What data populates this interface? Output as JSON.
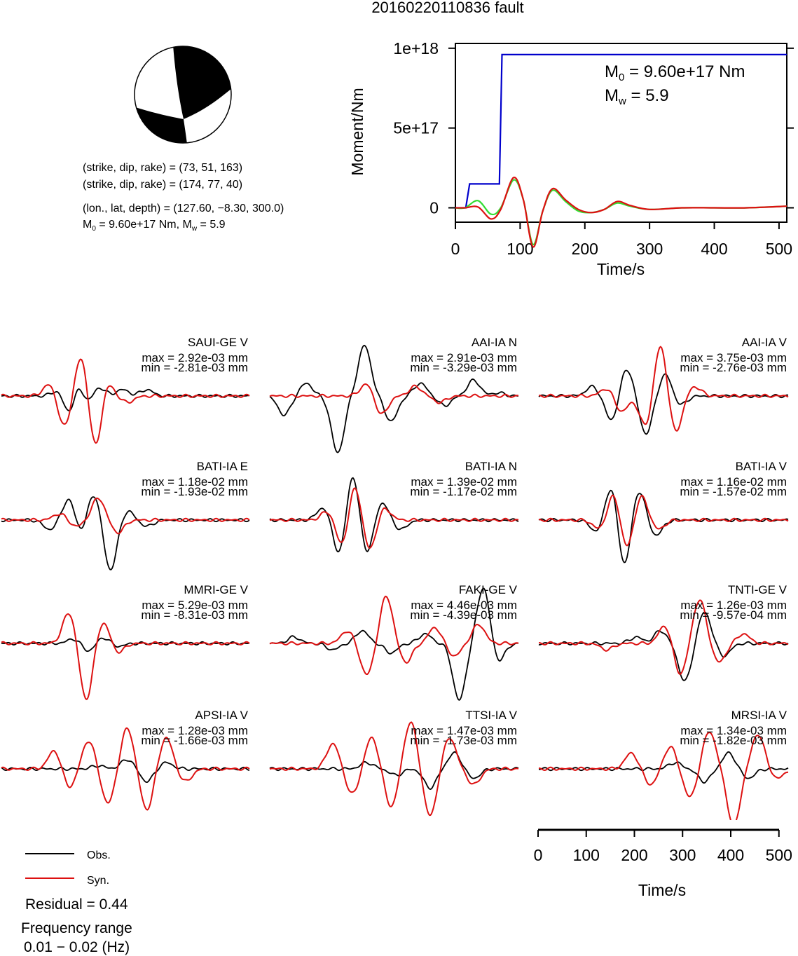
{
  "title": "20160220110836 fault",
  "focal_mechanism": {
    "nodal_plane_1": "(strike, dip, rake) = (73, 51, 163)",
    "nodal_plane_2": "(strike, dip, rake) = (174, 77, 40)",
    "location": "(lon., lat, depth) = (127.60, −8.30, 300.0)",
    "moment_prefix": "M",
    "moment_sub": "0",
    "moment_rest": " = 9.60e+17 Nm, M",
    "mw_sub": "w",
    "mw_rest": " = 5.9"
  },
  "chart_data": [
    {
      "type": "line",
      "ylabel": "Moment/Nm",
      "xlabel": "Time/s",
      "xlim": [
        0,
        512
      ],
      "ylim": [
        -9e+16,
        1.03e+18
      ],
      "xticks": [
        0,
        100,
        200,
        300,
        400,
        500
      ],
      "yticks": [
        0,
        5e+17,
        1e+18
      ],
      "ytick_labels": [
        "0",
        "5e+17",
        "1e+18"
      ],
      "annotation_m0": {
        "prefix": "M",
        "sub": "0",
        "rest": " = 9.60e+17 Nm"
      },
      "annotation_mw": {
        "prefix": "M",
        "sub": "w",
        "rest": " = 5.9"
      },
      "series": [
        {
          "color": "#0000cc",
          "kind": "moment",
          "x": [
            0,
            16,
            22,
            68,
            72,
            512
          ],
          "y": [
            0,
            0,
            1.5e+17,
            1.5e+17,
            9.6e+17,
            9.6e+17
          ]
        },
        {
          "color": "#33dd33",
          "kind": "rate",
          "x": [
            0,
            15,
            35,
            55,
            70,
            90,
            105,
            120,
            135,
            150,
            170,
            190,
            210,
            230,
            250,
            270,
            300,
            350,
            400,
            450,
            512
          ],
          "y": [
            0,
            0,
            4.5e+16,
            -4e+16,
            0,
            1.75e+17,
            5e+16,
            -2.3e+17,
            -2e+16,
            1.1e+17,
            4e+16,
            -2e+16,
            -3e+16,
            -1e+16,
            3e+16,
            1e+16,
            -1e+16,
            0,
            0,
            0,
            1e+16
          ]
        },
        {
          "color": "#dd1111",
          "kind": "rate",
          "x": [
            0,
            15,
            35,
            55,
            70,
            90,
            105,
            120,
            135,
            150,
            170,
            190,
            210,
            230,
            250,
            270,
            300,
            350,
            400,
            450,
            512
          ],
          "y": [
            0,
            0,
            5000000000000000.0,
            -7e+16,
            -1e+16,
            1.9e+17,
            5e+16,
            -2.45e+17,
            -2e+16,
            1.2e+17,
            5e+16,
            -1e+16,
            -3e+16,
            -1e+16,
            4e+16,
            1.5e+16,
            -1e+16,
            0,
            0,
            0,
            1e+16
          ]
        }
      ]
    },
    {
      "type": "line",
      "xlabel": "Time/s",
      "xlim": [
        0,
        512
      ],
      "xticks": [
        0,
        100,
        200,
        300,
        400,
        500
      ],
      "note": "waveform panels: observed (black) vs synthetic (red); amplitudes normalized per station",
      "stations": [
        {
          "label": "SAUI-GE V",
          "max": "max = 2.92e-03 mm",
          "min": "min = -2.81e-03 mm",
          "obs": {
            "peaks": [
              [
                120,
                0.25
              ],
              [
                140,
                -0.7
              ],
              [
                160,
                0.6
              ],
              [
                175,
                -0.4
              ],
              [
                200,
                0.3
              ],
              [
                250,
                0.2
              ],
              [
                300,
                0.2
              ]
            ]
          },
          "syn": {
            "peaks": [
              [
                100,
                0.4
              ],
              [
                130,
                -1.0
              ],
              [
                165,
                1.3
              ],
              [
                195,
                -1.8
              ],
              [
                215,
                0.6
              ],
              [
                260,
                -0.2
              ]
            ]
          }
        },
        {
          "label": "AAI-IA N",
          "max": "max = 2.91e-03 mm",
          "min": "min = -3.29e-03 mm",
          "obs": {
            "peaks": [
              [
                30,
                -0.6
              ],
              [
                75,
                0.4
              ],
              [
                140,
                -1.8
              ],
              [
                195,
                1.6
              ],
              [
                250,
                -0.8
              ],
              [
                310,
                0.4
              ],
              [
                360,
                -0.3
              ],
              [
                420,
                0.5
              ],
              [
                470,
                0.1
              ]
            ]
          },
          "syn": {
            "peaks": [
              [
                200,
                0.4
              ],
              [
                230,
                -0.6
              ],
              [
                300,
                0.3
              ],
              [
                350,
                -0.2
              ]
            ]
          }
        },
        {
          "label": "AAI-IA V",
          "max": "max = 3.75e-03 mm",
          "min": "min = -2.76e-03 mm",
          "obs": {
            "peaks": [
              [
                110,
                0.3
              ],
              [
                150,
                -0.8
              ],
              [
                180,
                0.9
              ],
              [
                220,
                -1.2
              ],
              [
                260,
                0.7
              ],
              [
                290,
                -0.3
              ]
            ]
          },
          "syn": {
            "peaks": [
              [
                140,
                0.25
              ],
              [
                170,
                -0.5
              ],
              [
                220,
                -1.0
              ],
              [
                250,
                1.7
              ],
              [
                280,
                -1.2
              ],
              [
                320,
                0.3
              ]
            ]
          }
        },
        {
          "label": "BATI-IA E",
          "max": "max = 1.18e-02 mm",
          "min": "min = -1.93e-02 mm",
          "obs": {
            "peaks": [
              [
                100,
                -0.3
              ],
              [
                140,
                0.7
              ],
              [
                165,
                -0.5
              ],
              [
                190,
                0.9
              ],
              [
                225,
                -1.6
              ],
              [
                260,
                0.3
              ],
              [
                300,
                -0.2
              ]
            ]
          },
          "syn": {
            "peaks": [
              [
                120,
                0.2
              ],
              [
                155,
                -0.2
              ],
              [
                200,
                0.7
              ],
              [
                240,
                -0.4
              ]
            ]
          }
        },
        {
          "label": "BATI-IA N",
          "max": "max = 1.39e-02 mm",
          "min": "min = -1.17e-02 mm",
          "obs": {
            "peaks": [
              [
                110,
                0.4
              ],
              [
                145,
                -1.2
              ],
              [
                170,
                1.6
              ],
              [
                200,
                -1.1
              ],
              [
                230,
                0.6
              ],
              [
                270,
                -0.3
              ]
            ]
          },
          "syn": {
            "peaks": [
              [
                120,
                0.3
              ],
              [
                150,
                -0.9
              ],
              [
                175,
                1.2
              ],
              [
                205,
                -1.0
              ],
              [
                235,
                0.4
              ]
            ]
          }
        },
        {
          "label": "BATI-IA V",
          "max": "max = 1.16e-02 mm",
          "min": "min = -1.57e-02 mm",
          "obs": {
            "peaks": [
              [
                120,
                -0.4
              ],
              [
                150,
                1.2
              ],
              [
                175,
                -1.6
              ],
              [
                205,
                1.0
              ],
              [
                240,
                -0.5
              ]
            ]
          },
          "syn": {
            "peaks": [
              [
                125,
                -0.3
              ],
              [
                155,
                0.9
              ],
              [
                180,
                -1.0
              ],
              [
                210,
                0.8
              ],
              [
                245,
                -0.3
              ]
            ]
          }
        },
        {
          "label": "MMRI-GE V",
          "max": "max = 5.29e-03 mm",
          "min": "min = -8.31e-03 mm",
          "obs": {
            "peaks": [
              [
                150,
                0.15
              ],
              [
                180,
                -0.25
              ],
              [
                210,
                0.2
              ],
              [
                240,
                -0.1
              ]
            ]
          },
          "syn": {
            "peaks": [
              [
                140,
                1.0
              ],
              [
                175,
                -1.8
              ],
              [
                210,
                0.7
              ],
              [
                240,
                -0.3
              ]
            ]
          }
        },
        {
          "label": "FAKI-GE V",
          "max": "max = 4.46e-03 mm",
          "min": "min = -4.39e-03 mm",
          "obs": {
            "peaks": [
              [
                50,
                0.2
              ],
              [
                130,
                -0.2
              ],
              [
                190,
                0.4
              ],
              [
                250,
                -0.3
              ],
              [
                320,
                0.3
              ],
              [
                390,
                -1.8
              ],
              [
                440,
                1.8
              ],
              [
                470,
                -0.6
              ]
            ]
          },
          "syn": {
            "peaks": [
              [
                160,
                0.4
              ],
              [
                200,
                -1.0
              ],
              [
                240,
                1.5
              ],
              [
                280,
                -0.6
              ],
              [
                340,
                0.5
              ],
              [
                380,
                -0.4
              ],
              [
                430,
                0.6
              ]
            ]
          }
        },
        {
          "label": "TNTI-GE V",
          "max": "max = 1.26e-03 mm",
          "min": "min = -9.57e-04 mm",
          "obs": {
            "peaks": [
              [
                200,
                0.2
              ],
              [
                250,
                0.4
              ],
              [
                300,
                -1.2
              ],
              [
                340,
                1.0
              ],
              [
                380,
                -0.4
              ]
            ]
          },
          "syn": {
            "peaks": [
              [
                140,
                -0.2
              ],
              [
                260,
                0.6
              ],
              [
                290,
                -1.0
              ],
              [
                330,
                1.4
              ],
              [
                370,
                -0.6
              ],
              [
                420,
                0.3
              ]
            ]
          }
        },
        {
          "label": "APSI-IA V",
          "max": "max = 1.28e-03 mm",
          "min": "min = -1.66e-03 mm",
          "obs": {
            "peaks": [
              [
                200,
                0.1
              ],
              [
                260,
                0.3
              ],
              [
                300,
                -0.4
              ],
              [
                340,
                0.2
              ]
            ]
          },
          "syn": {
            "peaks": [
              [
                110,
                0.6
              ],
              [
                140,
                -0.6
              ],
              [
                180,
                0.9
              ],
              [
                220,
                -1.1
              ],
              [
                260,
                1.3
              ],
              [
                300,
                -1.3
              ],
              [
                340,
                1.0
              ],
              [
                380,
                -0.4
              ]
            ]
          }
        },
        {
          "label": "TTSI-IA V",
          "max": "max = 1.47e-03 mm",
          "min": "min = -1.73e-03 mm",
          "obs": {
            "peaks": [
              [
                200,
                0.2
              ],
              [
                260,
                -0.2
              ],
              [
                330,
                -0.6
              ],
              [
                380,
                0.5
              ],
              [
                420,
                -0.3
              ]
            ]
          },
          "syn": {
            "peaks": [
              [
                130,
                0.8
              ],
              [
                170,
                -0.8
              ],
              [
                210,
                1.0
              ],
              [
                250,
                -1.2
              ],
              [
                290,
                1.5
              ],
              [
                330,
                -1.5
              ],
              [
                370,
                1.0
              ],
              [
                420,
                -0.5
              ]
            ]
          }
        },
        {
          "label": "MRSI-IA V",
          "max": "max = 1.34e-03 mm",
          "min": "min = -1.82e-03 mm",
          "obs": {
            "peaks": [
              [
                280,
                0.2
              ],
              [
                340,
                -0.4
              ],
              [
                390,
                0.5
              ],
              [
                430,
                -0.3
              ]
            ]
          },
          "syn": {
            "peaks": [
              [
                190,
                0.5
              ],
              [
                230,
                -0.5
              ],
              [
                270,
                0.7
              ],
              [
                310,
                -0.9
              ],
              [
                350,
                1.2
              ],
              [
                400,
                -1.8
              ],
              [
                450,
                1.1
              ],
              [
                490,
                -0.3
              ]
            ]
          }
        }
      ]
    }
  ],
  "legend": {
    "obs_label": "Obs.",
    "syn_label": "Syn.",
    "obs_color": "#000000",
    "syn_color": "#dd1111"
  },
  "residual": "Residual = 0.44",
  "frequency_label": "Frequency range",
  "frequency_value": "0.01 − 0.02 (Hz)"
}
